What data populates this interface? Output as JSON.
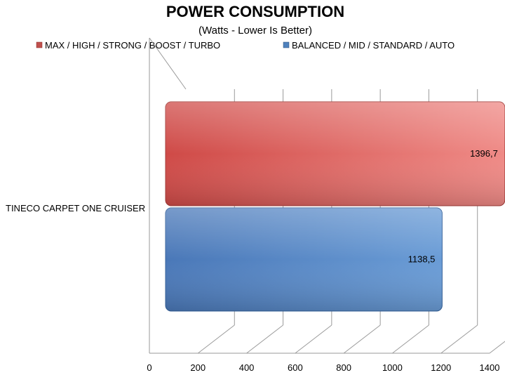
{
  "chart_data": {
    "type": "bar",
    "orientation": "horizontal",
    "title": "POWER CONSUMPTION",
    "subtitle": "(Watts - Lower Is Better)",
    "categories": [
      "TINECO CARPET ONE CRUISER"
    ],
    "series": [
      {
        "name": "MAX / HIGH / STRONG / BOOST / TURBO",
        "values": [
          1396.7
        ],
        "labels": [
          "1396,7"
        ],
        "color": "#d9534f"
      },
      {
        "name": "BALANCED / MID / STANDARD / AUTO",
        "values": [
          1138.5
        ],
        "labels": [
          "1138,5"
        ],
        "color": "#4f81bd"
      }
    ],
    "xlim": [
      0,
      1400
    ],
    "xticks": [
      0,
      200,
      400,
      600,
      800,
      1000,
      1200,
      1400
    ],
    "xtick_labels": [
      "0",
      "200",
      "400",
      "600",
      "800",
      "1000",
      "1200",
      "1400"
    ],
    "grid": true,
    "legend_position": "top"
  }
}
